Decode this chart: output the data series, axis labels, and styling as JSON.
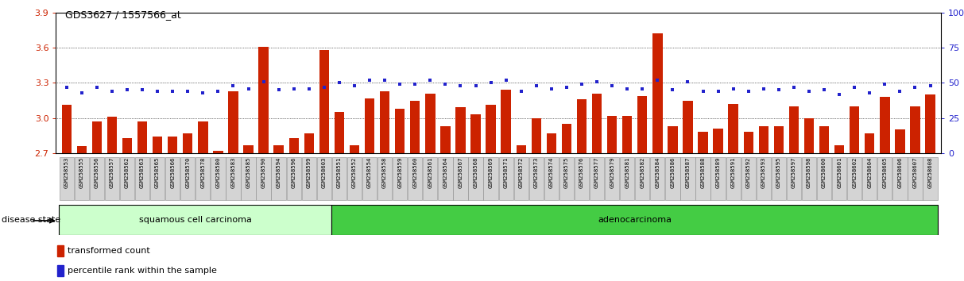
{
  "title": "GDS3627 / 1557566_at",
  "samples": [
    "GSM258553",
    "GSM258555",
    "GSM258556",
    "GSM258557",
    "GSM258562",
    "GSM258563",
    "GSM258565",
    "GSM258566",
    "GSM258570",
    "GSM258578",
    "GSM258580",
    "GSM258583",
    "GSM258585",
    "GSM258590",
    "GSM258594",
    "GSM258596",
    "GSM258599",
    "GSM258603",
    "GSM258551",
    "GSM258552",
    "GSM258554",
    "GSM258558",
    "GSM258559",
    "GSM258560",
    "GSM258561",
    "GSM258564",
    "GSM258567",
    "GSM258568",
    "GSM258569",
    "GSM258571",
    "GSM258572",
    "GSM258573",
    "GSM258574",
    "GSM258575",
    "GSM258576",
    "GSM258577",
    "GSM258579",
    "GSM258581",
    "GSM258582",
    "GSM258584",
    "GSM258586",
    "GSM258587",
    "GSM258588",
    "GSM258589",
    "GSM258591",
    "GSM258592",
    "GSM258593",
    "GSM258595",
    "GSM258597",
    "GSM258598",
    "GSM258600",
    "GSM258601",
    "GSM258602",
    "GSM258604",
    "GSM258605",
    "GSM258606",
    "GSM258607",
    "GSM258608"
  ],
  "bar_values": [
    3.11,
    2.76,
    2.97,
    3.01,
    2.83,
    2.97,
    2.84,
    2.84,
    2.87,
    2.97,
    2.72,
    3.23,
    2.77,
    3.61,
    2.77,
    2.83,
    2.87,
    3.58,
    3.05,
    2.77,
    3.17,
    3.23,
    3.08,
    3.15,
    3.21,
    2.93,
    3.09,
    3.03,
    3.11,
    3.24,
    2.77,
    3.0,
    2.87,
    2.95,
    3.16,
    3.21,
    3.02,
    3.02,
    3.19,
    3.72,
    2.93,
    3.15,
    2.88,
    2.91,
    3.12,
    2.88,
    2.93,
    2.93,
    3.1,
    3.0,
    2.93,
    2.77,
    3.1,
    2.87,
    3.18,
    2.9,
    3.1,
    3.2
  ],
  "dot_values": [
    47,
    43,
    47,
    44,
    45,
    45,
    44,
    44,
    44,
    43,
    44,
    48,
    46,
    51,
    45,
    46,
    46,
    47,
    50,
    48,
    52,
    52,
    49,
    49,
    52,
    49,
    48,
    48,
    50,
    52,
    44,
    48,
    46,
    47,
    49,
    51,
    48,
    46,
    46,
    52,
    45,
    51,
    44,
    44,
    46,
    44,
    46,
    45,
    47,
    44,
    45,
    42,
    47,
    43,
    49,
    44,
    47,
    48
  ],
  "squamous_count": 18,
  "adenocarcinoma_count": 40,
  "ylim_left": [
    2.7,
    3.9
  ],
  "ylim_right": [
    0,
    100
  ],
  "yticks_left": [
    2.7,
    3.0,
    3.3,
    3.6,
    3.9
  ],
  "yticks_right": [
    0,
    25,
    50,
    75,
    100
  ],
  "bar_color": "#cc2200",
  "dot_color": "#2222cc",
  "squamous_color": "#ccffcc",
  "adenocarcinoma_color": "#44cc44",
  "bg_color": "#ffffff"
}
